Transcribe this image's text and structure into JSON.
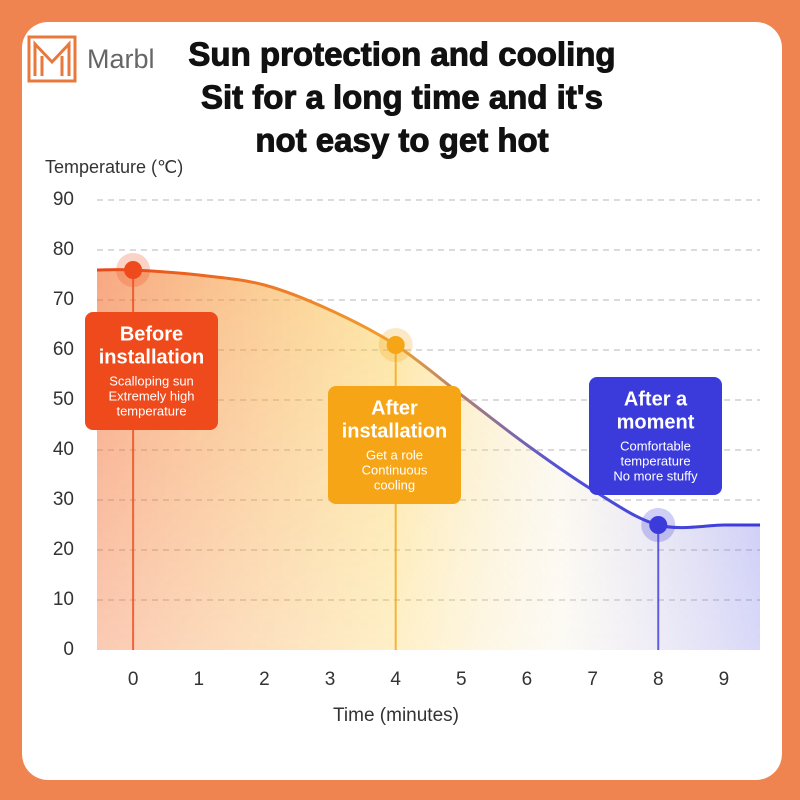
{
  "brand": "Marbl",
  "chart_data": {
    "type": "line",
    "title": [
      "Sun protection and cooling",
      "Sit for a long time and it's",
      "not easy to get hot"
    ],
    "y_label": "Temperature (℃)",
    "x_label": "Time (minutes)",
    "x": [
      -0.55,
      0,
      1,
      2,
      3,
      4,
      5,
      6,
      7,
      8,
      9,
      9.55
    ],
    "series": [
      {
        "color": "#e8461a",
        "values": [
          76,
          76,
          75,
          73,
          68,
          61,
          51,
          41,
          32,
          25,
          25,
          25
        ]
      }
    ],
    "xlim": [
      -0.55,
      9.55
    ],
    "xticks": [
      0,
      1,
      2,
      3,
      4,
      5,
      6,
      7,
      8,
      9
    ],
    "ylim": [
      0,
      90
    ],
    "yticks": [
      0,
      10,
      20,
      30,
      40,
      50,
      60,
      70,
      80,
      90
    ],
    "grid": true,
    "highlights": [
      {
        "x": 0,
        "y": 76,
        "color": "#ee4a1c",
        "title": [
          "Before",
          "installation"
        ],
        "text": [
          "Scalloping sun",
          "Extremely high",
          "temperature"
        ]
      },
      {
        "x": 4,
        "y": 61,
        "color": "#f5a516",
        "title": [
          "After",
          "installation"
        ],
        "text": [
          "Get a role",
          "Continuous",
          "cooling"
        ]
      },
      {
        "x": 8,
        "y": 25,
        "color": "#3b3bdc",
        "title": [
          "After a",
          "moment"
        ],
        "text": [
          "Comfortable",
          "temperature",
          "No more stuffy"
        ]
      }
    ]
  }
}
